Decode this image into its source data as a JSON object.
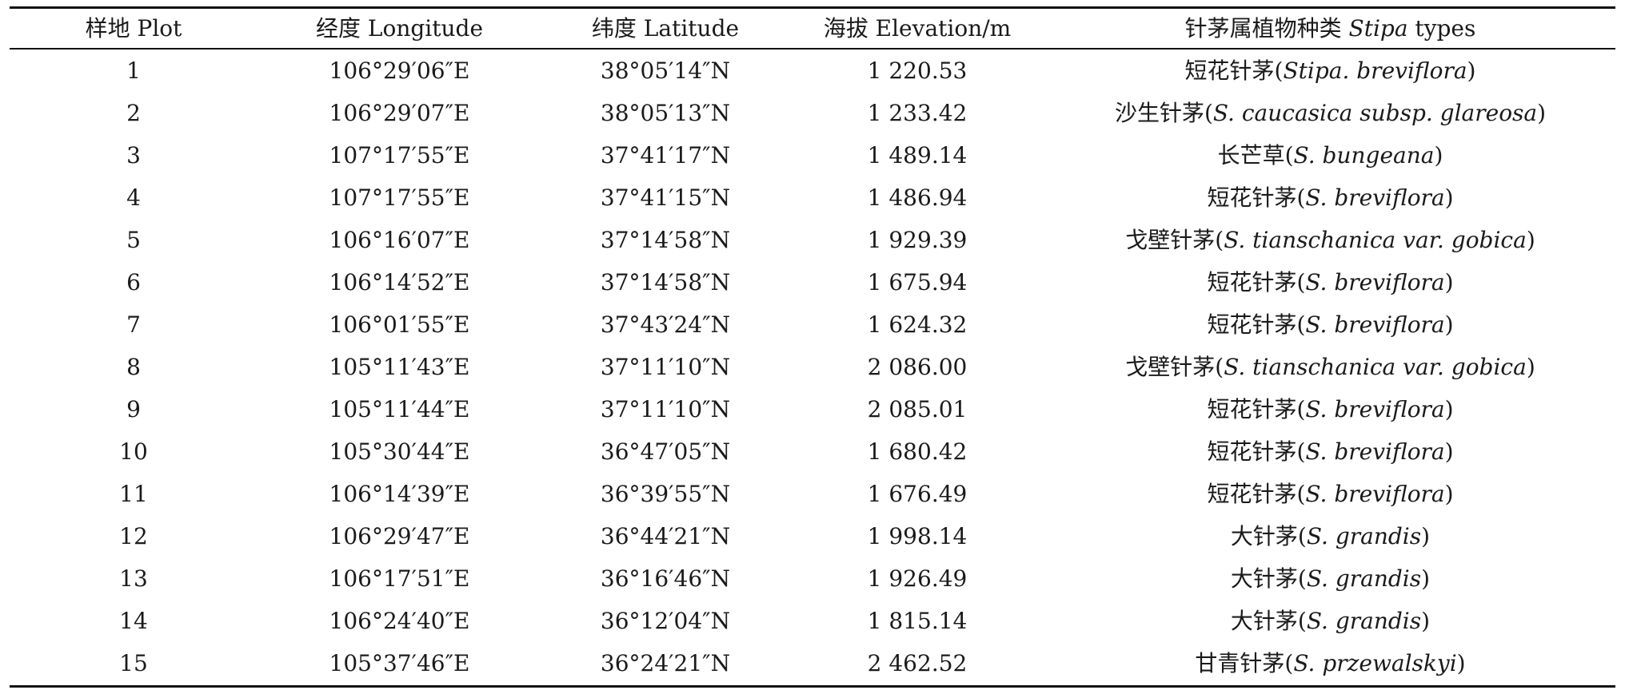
{
  "header": {
    "plot": "样地 Plot",
    "longitude": "经度 Longitude",
    "latitude": "纬度 Latitude",
    "elevation": "海拔 Elevation/m",
    "species_prefix": "针茅属植物种类 ",
    "species_italic": "Stipa",
    "species_suffix": " types"
  },
  "rows": [
    {
      "plot": "1",
      "lon": "106°29′06″E",
      "lat": "38°05′14″N",
      "elev": "1 220.53",
      "cn": "短花针茅(",
      "sci": "Stipa. breviflora",
      "close": ")"
    },
    {
      "plot": "2",
      "lon": "106°29′07″E",
      "lat": "38°05′13″N",
      "elev": "1 233.42",
      "cn": "沙生针茅(",
      "sci": "S. caucasica subsp. glareosa",
      "close": ")"
    },
    {
      "plot": "3",
      "lon": "107°17′55″E",
      "lat": "37°41′17″N",
      "elev": "1 489.14",
      "cn": "长芒草(",
      "sci": "S. bungeana",
      "close": ")"
    },
    {
      "plot": "4",
      "lon": "107°17′55″E",
      "lat": "37°41′15″N",
      "elev": "1 486.94",
      "cn": "短花针茅(",
      "sci": "S. breviflora",
      "close": ")"
    },
    {
      "plot": "5",
      "lon": "106°16′07″E",
      "lat": "37°14′58″N",
      "elev": "1 929.39",
      "cn": "戈壁针茅(",
      "sci": "S. tianschanica var. gobica",
      "close": ")"
    },
    {
      "plot": "6",
      "lon": "106°14′52″E",
      "lat": "37°14′58″N",
      "elev": "1 675.94",
      "cn": "短花针茅(",
      "sci": "S. breviflora",
      "close": ")"
    },
    {
      "plot": "7",
      "lon": "106°01′55″E",
      "lat": "37°43′24″N",
      "elev": "1 624.32",
      "cn": "短花针茅(",
      "sci": "S. breviflora",
      "close": ")"
    },
    {
      "plot": "8",
      "lon": "105°11′43″E",
      "lat": "37°11′10″N",
      "elev": "2 086.00",
      "cn": "戈壁针茅(",
      "sci": "S. tianschanica var. gobica",
      "close": ")"
    },
    {
      "plot": "9",
      "lon": "105°11′44″E",
      "lat": "37°11′10″N",
      "elev": "2 085.01",
      "cn": "短花针茅(",
      "sci": "S. breviflora",
      "close": ")"
    },
    {
      "plot": "10",
      "lon": "105°30′44″E",
      "lat": "36°47′05″N",
      "elev": "1 680.42",
      "cn": "短花针茅(",
      "sci": "S. breviflora",
      "close": ")"
    },
    {
      "plot": "11",
      "lon": "106°14′39″E",
      "lat": "36°39′55″N",
      "elev": "1 676.49",
      "cn": "短花针茅(",
      "sci": "S. breviflora",
      "close": ")"
    },
    {
      "plot": "12",
      "lon": "106°29′47″E",
      "lat": "36°44′21″N",
      "elev": "1 998.14",
      "cn": "大针茅(",
      "sci": "S. grandis",
      "close": ")"
    },
    {
      "plot": "13",
      "lon": "106°17′51″E",
      "lat": "36°16′46″N",
      "elev": "1 926.49",
      "cn": "大针茅(",
      "sci": "S. grandis",
      "close": ")"
    },
    {
      "plot": "14",
      "lon": "106°24′40″E",
      "lat": "36°12′04″N",
      "elev": "1 815.14",
      "cn": "大针茅(",
      "sci": "S. grandis",
      "close": ")"
    },
    {
      "plot": "15",
      "lon": "105°37′46″E",
      "lat": "36°24′21″N",
      "elev": "2 462.52",
      "cn": "甘青针茅(",
      "sci": "S. przewalskyi",
      "close": ")"
    }
  ]
}
